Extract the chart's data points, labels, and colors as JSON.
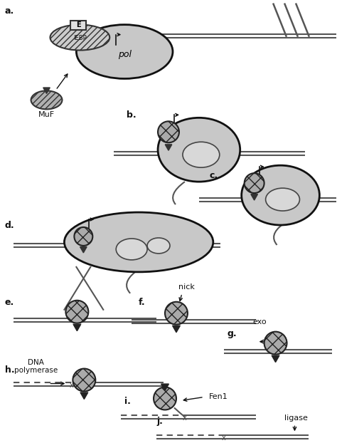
{
  "bg_color": "#ffffff",
  "labels": [
    "a.",
    "b.",
    "c.",
    "d.",
    "e.",
    "f.",
    "g.",
    "h.",
    "i.",
    "j."
  ],
  "text": {
    "pol": "pol",
    "MuF": "MuF",
    "IEBP": "IEBP",
    "E": "E",
    "nick": "nick",
    "exo": "exo",
    "dna_pol": "DNA\npolymerase",
    "fen1": "Fen1",
    "ligase": "ligase"
  },
  "colors": {
    "black": "#111111",
    "dark_gray": "#444444",
    "mid_gray": "#888888",
    "light_gray": "#bbbbbb",
    "dna_line": "#555555",
    "pol_fill": "#c8c8c8",
    "pol_inner_fill": "#d8d8d8",
    "hatch_fill": "#aaaaaa",
    "iebp_fill": "#cccccc",
    "muf_fill": "#b0b0b0"
  }
}
